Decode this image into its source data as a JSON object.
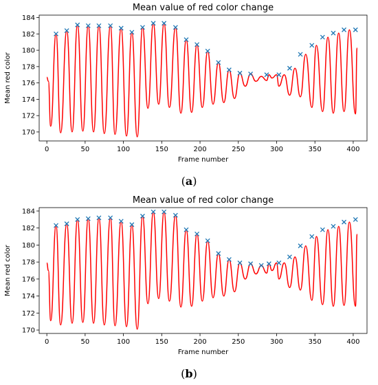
{
  "chart_data": [
    {
      "panel": "a",
      "type": "line",
      "title": "Mean value of red color change",
      "xlabel": "Frame number",
      "ylabel": "Mean red color",
      "xlim": [
        -10,
        418
      ],
      "ylim": [
        168.9,
        184.3
      ],
      "xticks": [
        0,
        50,
        100,
        150,
        200,
        250,
        300,
        350,
        400
      ],
      "yticks": [
        170,
        172,
        174,
        176,
        178,
        180,
        182,
        184
      ],
      "grid": false,
      "line_color": "#ff0000",
      "marker_color": "#1f77b4",
      "series": [
        {
          "style": "line",
          "x": [
            0,
            2,
            5,
            12,
            18,
            26,
            33,
            40,
            47,
            54,
            61,
            68,
            75,
            83,
            89,
            97,
            104,
            111,
            118,
            125,
            132,
            139,
            146,
            153,
            160,
            168,
            175,
            182,
            189,
            196,
            203,
            210,
            217,
            224,
            231,
            238,
            245,
            252,
            259,
            266,
            273,
            280,
            287,
            290,
            294,
            300,
            303,
            310,
            317,
            324,
            331,
            338,
            346,
            352,
            360,
            367,
            374,
            381,
            388,
            395,
            403,
            405
          ],
          "y": [
            176.7,
            176.2,
            170.7,
            182.0,
            169.9,
            182.4,
            170.0,
            183.1,
            170.1,
            183.0,
            170.0,
            183.0,
            169.8,
            183.0,
            169.7,
            182.7,
            169.5,
            182.2,
            169.4,
            182.8,
            172.9,
            183.3,
            173.4,
            183.3,
            173.0,
            182.8,
            172.3,
            181.3,
            172.4,
            180.7,
            173.0,
            179.9,
            173.4,
            178.5,
            173.6,
            177.6,
            174.1,
            177.2,
            175.6,
            177.1,
            176.2,
            176.8,
            176.3,
            177.0,
            176.6,
            177.0,
            175.6,
            177.0,
            174.5,
            177.8,
            174.3,
            179.5,
            173.0,
            180.6,
            172.5,
            181.6,
            172.3,
            182.1,
            172.5,
            182.5,
            172.2,
            180.3
          ]
        },
        {
          "style": "markers",
          "marker": "x",
          "x": [
            12,
            26,
            40,
            54,
            68,
            83,
            97,
            111,
            125,
            139,
            153,
            168,
            182,
            196,
            210,
            224,
            238,
            252,
            266,
            287,
            303,
            317,
            331,
            346,
            360,
            374,
            388,
            403
          ],
          "y": [
            182.0,
            182.4,
            183.1,
            183.0,
            183.0,
            183.0,
            182.7,
            182.2,
            182.8,
            183.3,
            183.3,
            182.8,
            181.3,
            180.7,
            179.9,
            178.5,
            177.6,
            177.2,
            177.1,
            177.0,
            177.0,
            177.8,
            179.5,
            180.6,
            181.6,
            182.1,
            182.5,
            182.5
          ]
        }
      ]
    },
    {
      "panel": "b",
      "type": "line",
      "title": "Mean value of red color change",
      "xlabel": "Frame number",
      "ylabel": "Mean red color",
      "xlim": [
        -10,
        418
      ],
      "ylim": [
        169.6,
        184.4
      ],
      "xticks": [
        0,
        50,
        100,
        150,
        200,
        250,
        300,
        350,
        400
      ],
      "yticks": [
        170,
        172,
        174,
        176,
        178,
        180,
        182,
        184
      ],
      "grid": false,
      "line_color": "#ff0000",
      "marker_color": "#1f77b4",
      "series": [
        {
          "style": "line",
          "x": [
            0,
            2,
            5,
            12,
            18,
            26,
            33,
            40,
            47,
            54,
            61,
            68,
            75,
            83,
            89,
            97,
            104,
            111,
            118,
            125,
            132,
            139,
            146,
            153,
            160,
            168,
            175,
            182,
            189,
            196,
            203,
            210,
            217,
            224,
            231,
            238,
            245,
            252,
            259,
            266,
            273,
            280,
            287,
            290,
            294,
            300,
            303,
            310,
            317,
            324,
            331,
            338,
            346,
            352,
            360,
            367,
            374,
            381,
            388,
            395,
            403,
            405
          ],
          "y": [
            177.9,
            177.0,
            171.1,
            182.3,
            170.6,
            182.5,
            170.8,
            183.0,
            170.9,
            183.1,
            170.8,
            183.2,
            170.6,
            183.2,
            170.5,
            182.8,
            170.4,
            182.4,
            170.1,
            183.4,
            173.1,
            183.9,
            173.7,
            183.9,
            173.4,
            183.5,
            172.7,
            181.8,
            172.8,
            181.3,
            173.4,
            180.5,
            173.8,
            179.0,
            174.0,
            178.3,
            174.5,
            177.9,
            176.0,
            177.8,
            176.6,
            177.6,
            176.7,
            177.8,
            177.0,
            177.9,
            176.0,
            177.9,
            175.0,
            178.6,
            174.7,
            179.9,
            173.5,
            181.0,
            173.0,
            181.8,
            172.8,
            182.2,
            172.9,
            182.7,
            172.8,
            181.3
          ]
        },
        {
          "style": "markers",
          "marker": "x",
          "x": [
            12,
            26,
            40,
            54,
            68,
            83,
            97,
            111,
            125,
            139,
            153,
            168,
            182,
            196,
            210,
            224,
            238,
            252,
            266,
            280,
            290,
            303,
            317,
            331,
            346,
            360,
            374,
            388,
            403
          ],
          "y": [
            182.3,
            182.5,
            183.0,
            183.1,
            183.2,
            183.2,
            182.8,
            182.4,
            183.4,
            183.9,
            183.9,
            183.5,
            181.8,
            181.3,
            180.5,
            179.0,
            178.3,
            177.9,
            177.8,
            177.6,
            177.8,
            177.9,
            178.6,
            179.9,
            181.0,
            181.8,
            182.2,
            182.7,
            183.0
          ]
        }
      ]
    }
  ],
  "captions": [
    {
      "open": "(",
      "letter": "a",
      "close": ")"
    },
    {
      "open": "(",
      "letter": "b",
      "close": ")"
    }
  ]
}
